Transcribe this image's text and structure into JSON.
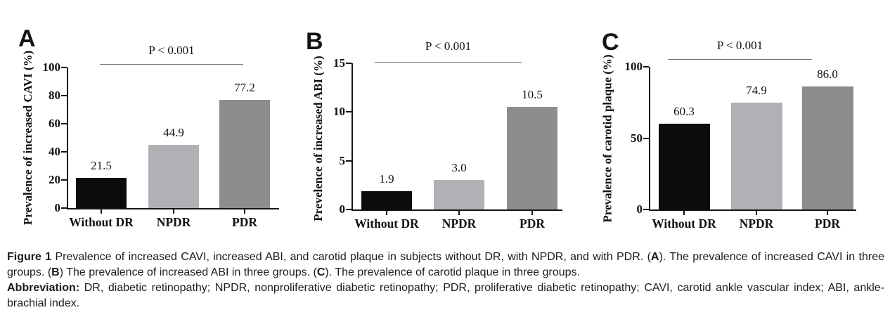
{
  "chart_data": [
    {
      "type": "bar",
      "panel_letter": "A",
      "annotation": "P < 0.001",
      "title": "",
      "xlabel": "",
      "ylabel": "Prevalence of increased CAVI (%)",
      "categories": [
        "Without DR",
        "NPDR",
        "PDR"
      ],
      "values": [
        21.5,
        44.9,
        77.2
      ],
      "data_labels": [
        "21.5",
        "44.9",
        "77.2"
      ],
      "ylim": [
        0,
        100
      ],
      "yticks": [
        0,
        20,
        40,
        60,
        80,
        100
      ],
      "bar_colors": [
        "#0b0b0b",
        "#b1b1b5",
        "#8d8d8d"
      ],
      "grid": false,
      "legend": null
    },
    {
      "type": "bar",
      "panel_letter": "B",
      "annotation": "P < 0.001",
      "title": "",
      "xlabel": "",
      "ylabel": "Prevelence of increased ABI (%)",
      "categories": [
        "Without DR",
        "NPDR",
        "PDR"
      ],
      "values": [
        1.9,
        3.0,
        10.5
      ],
      "data_labels": [
        "1.9",
        "3.0",
        "10.5"
      ],
      "ylim": [
        0,
        15
      ],
      "yticks": [
        0,
        5,
        10,
        15
      ],
      "bar_colors": [
        "#0b0b0b",
        "#b1b1b5",
        "#8d8d8d"
      ],
      "grid": false,
      "legend": null
    },
    {
      "type": "bar",
      "panel_letter": "C",
      "annotation": "P < 0.001",
      "title": "",
      "xlabel": "",
      "ylabel": "Prevalence of carotid plaque (%)",
      "categories": [
        "Without DR",
        "NPDR",
        "PDR"
      ],
      "values": [
        60.3,
        74.9,
        86.0
      ],
      "data_labels": [
        "60.3",
        "74.9",
        "86.0"
      ],
      "ylim": [
        0,
        100
      ],
      "yticks": [
        0,
        50,
        100
      ],
      "bar_colors": [
        "#0b0b0b",
        "#b1b1b5",
        "#8d8d8d"
      ],
      "grid": false,
      "legend": null
    }
  ],
  "caption": {
    "paragraphs": [
      {
        "segments": [
          {
            "t": "Figure 1",
            "b": true
          },
          {
            "t": " Prevalence of increased CAVI, increased ABI, and carotid plaque in subjects without DR, with NPDR, and with PDR. (",
            "b": false
          },
          {
            "t": "A",
            "b": true
          },
          {
            "t": "). The prevalence of increased CAVI in three groups. (",
            "b": false
          },
          {
            "t": "B",
            "b": true
          },
          {
            "t": ") The prevalence of increased ABI in three groups. (",
            "b": false
          },
          {
            "t": "C",
            "b": true
          },
          {
            "t": "). The prevalence of carotid plaque in three groups.",
            "b": false
          }
        ]
      },
      {
        "segments": [
          {
            "t": "Abbreviation:",
            "b": true
          },
          {
            "t": " DR, diabetic retinopathy; NPDR, nonproliferative diabetic retinopathy; PDR, proliferative diabetic retinopathy; CAVI, carotid ankle vascular index; ABI, ankle-brachial index.",
            "b": false
          }
        ]
      }
    ]
  },
  "colors": {
    "bar_black": "#0b0b0b",
    "bar_light_gray": "#b1b1b5",
    "bar_gray": "#8d8d8d",
    "axis": "#151515",
    "significance_line": "#6e6e6e"
  }
}
